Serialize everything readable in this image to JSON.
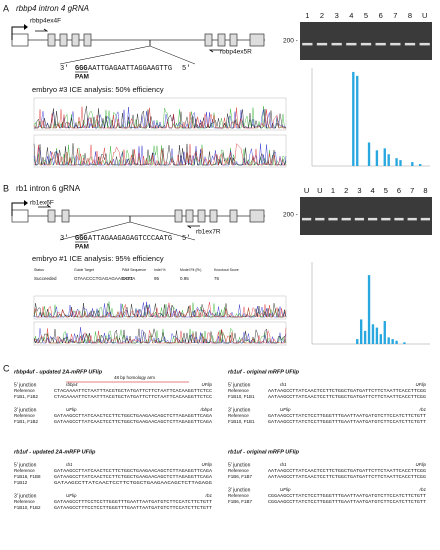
{
  "panel_a": {
    "label": "A",
    "title": "rbbp4 intron 4 gRNA",
    "primer_f": "rbbp4ex4F",
    "primer_r": "rbbp4ex5R",
    "guide_prefix": "3'",
    "guide_pam": "GGG",
    "guide_rest": "AATTGAGAATTAGGAAGTTG",
    "guide_suffix": "5'",
    "pam_label": "PAM",
    "ice_title": "embryo #3 ICE analysis: 50% efficiency",
    "gel_marker": "200 -",
    "gel_lanes": [
      "1",
      "2",
      "3",
      "4",
      "5",
      "6",
      "7",
      "8",
      "U"
    ],
    "ice_ylim": [
      0,
      50
    ],
    "ice_bars": [
      0,
      0,
      0,
      0,
      0,
      0,
      0,
      0,
      0,
      0,
      48,
      46,
      0,
      0,
      12,
      0,
      8,
      0,
      9,
      6,
      0,
      4,
      3,
      0,
      0,
      2,
      0,
      1,
      0,
      0
    ]
  },
  "panel_b": {
    "label": "B",
    "title": "rb1 intron 6 gRNA",
    "primer_f": "rb1ex6F",
    "primer_r": "rb1ex7R",
    "guide_prefix": "3'",
    "guide_pam": "GGG",
    "guide_rest": "ATTAGAAGAGAGTCCCAATG",
    "guide_suffix": "5'",
    "pam_label": "PAM",
    "ice_title": "embryo #1 ICE analysis: 95% efficiency",
    "gel_marker": "200 -",
    "gel_lanes": [
      "U",
      "U",
      "1",
      "2",
      "3",
      "4",
      "5",
      "6",
      "7",
      "8"
    ],
    "ice_table": [
      [
        "Status",
        "Succeeded"
      ],
      [
        "Guide Target",
        "GTAACCCTGAGAGAAGATTA"
      ],
      [
        "PAM Sequence",
        "GGG"
      ],
      [
        "Indel %",
        "95"
      ],
      [
        "Model Fit (R²)",
        "0.95"
      ],
      [
        "Knockout Score",
        "76"
      ]
    ],
    "ice_ylim": [
      0,
      50
    ],
    "ice_bars": [
      0,
      0,
      0,
      0,
      0,
      0,
      0,
      0,
      0,
      0,
      0,
      3,
      15,
      8,
      42,
      12,
      10,
      6,
      14,
      4,
      3,
      2,
      0,
      1,
      0,
      0,
      0,
      0,
      0,
      0
    ]
  },
  "panel_c": {
    "label": "C",
    "blocks": [
      {
        "title": "rbbp4uf - updated 2A-mRFP UFlip",
        "annotation": "48 bp homology arm",
        "junctions": [
          {
            "name": "5' junction",
            "tags": [
              "rbbp4",
              "UFlip"
            ],
            "rows": [
              [
                "Reference",
                "CTACAAAATTCTAATTTACGTGCTATGATTCTTCTAATTCACAAGGTTCTCC"
              ],
              [
                "F1B1, F1B2",
                "CTACAAAATTCTAATTTACGTGCTATGATTCTTCTAATTCACAAGGTTCTCC"
              ]
            ]
          },
          {
            "name": "3' junction",
            "tags": [
              "UFlip",
              "rbbp4"
            ],
            "rows": [
              [
                "Reference",
                "GATAAGCCTTATCAACTCCTTCTGGCTGAAGAACAGCTCTTAGAGGTTCAGA"
              ],
              [
                "F1B1, F1B2",
                "GATAAGCCTTATCAACTCCTTCTGGCTGAAGAACAGCTCTTAGAGGTTCAGA"
              ]
            ]
          }
        ]
      },
      {
        "title": "rb1uf - original mRFP UFlip",
        "junctions": [
          {
            "name": "5' junction",
            "tags": [
              "rb1",
              "UFlip"
            ],
            "rows": [
              [
                "Reference",
                "AATAAGCCTTATCAACTCCTTCTGGCTGATGATTCTTCTAATTCACCTTCGG"
              ],
              [
                "F1B10, F1B1",
                "AATAAGCCTTATCAACTCCTTCTGGCTGATGATTCTTCTAATTCACCTTCGG"
              ]
            ]
          },
          {
            "name": "3' junction",
            "tags": [
              "UFlip",
              "rb1"
            ],
            "rows": [
              [
                "Reference",
                "GATAAGCCTTATCTCCTTGGGTTTGAATTAATGATGTCTTCCATCTTCTGTT"
              ],
              [
                "F1B10, F1B1",
                "GATAAGCCTTATCTCCTTGGGTTTGAATTAATGATGTCTTCCATCTTCTGTT"
              ]
            ]
          }
        ]
      },
      {
        "title": "rb1uf - updated 2A-mRFP UFlip",
        "junctions": [
          {
            "name": "5' junction",
            "tags": [
              "rb1",
              "UFlip"
            ],
            "rows": [
              [
                "Reference",
                "GATAAGCCTTATCAACTCCTTCTGGCTGAAGAACAGCTCTTAGAGGTTCAGA"
              ],
              [
                "F1B16, F1B8",
                "GATAAGCCTTATCAACTCCTTCTGGCTGAAGAACAGCTCTTAGAGGTTCAGA"
              ],
              [
                "F1B12",
                "GATAAGCCTTATCAACTCCTTCTGGCTGAAGAACAGCTCTTAGAGG"
              ]
            ]
          },
          {
            "name": "3' junction",
            "tags": [
              "UFlip",
              "rb1"
            ],
            "rows": [
              [
                "Reference",
                "GATAAGCCTTTCCTCCTTGGGTTTGAATTAATGATGTCTTCCATCTTCTGTT"
              ],
              [
                "F1B10, F1B2",
                "GATAAGCCTTTCCTCCTTGGGTTTGAATTAATGATGTCTTCCATCTTCTGTT"
              ]
            ]
          }
        ]
      },
      {
        "title": "rb1uf - original mRFP UFlip",
        "junctions": [
          {
            "name": "5' junction",
            "tags": [
              "rb1",
              "UFlip"
            ],
            "rows": [
              [
                "Reference",
                "AATAAGCCTTATCAACTCCTTCTGGCTGATGATTCTTCTAATTCACCTTCGG"
              ],
              [
                "F1B6, F1B7",
                "AATAAGCCTTATCAACTCCTTCTGGCTGATGATTCTTCTAATTCACCTTCGG"
              ]
            ]
          },
          {
            "name": "3' junction",
            "tags": [
              "UFlip",
              "rb1"
            ],
            "rows": [
              [
                "Reference",
                "CGGAAGCCTTATCTCCTTGGGTTTGAATTAATGATGTCTTCCATCTTCTGTT"
              ],
              [
                "F1B6, F1B7",
                "CGGAAGCCTTATCTCCTTGGGTTTGAATTAATGATGTCTTCCATCTTCTGTT"
              ]
            ]
          }
        ]
      }
    ]
  }
}
